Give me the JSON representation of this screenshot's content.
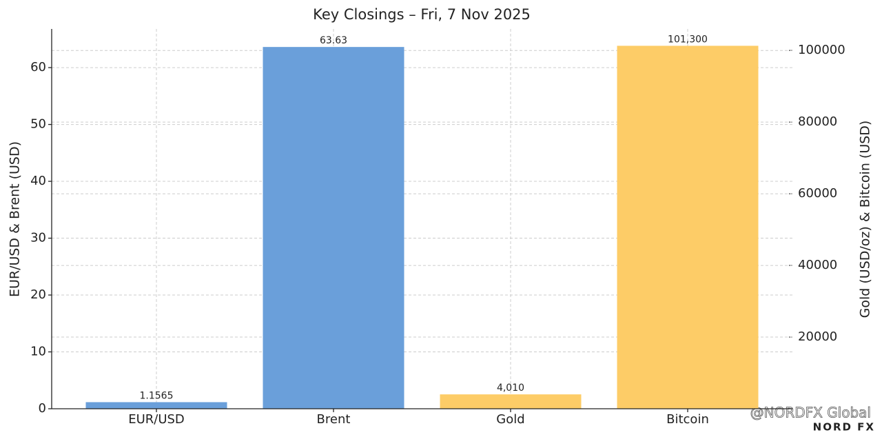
{
  "chart_data": {
    "type": "bar",
    "title": "Key Closings – Fri, 7 Nov 2025",
    "categories": [
      "EUR/USD",
      "Brent",
      "Gold",
      "Bitcoin"
    ],
    "ylabel": "EUR/USD & Brent (USD)",
    "y2label": "Gold (USD/oz) & Bitcoin (USD)",
    "ylim": [
      0,
      66.8
    ],
    "yticks": [
      0,
      10,
      20,
      30,
      40,
      50,
      60
    ],
    "y2lim": [
      0,
      106000
    ],
    "y2ticks": [
      20000,
      40000,
      60000,
      80000,
      100000
    ],
    "grid": true,
    "series": [
      {
        "color": "#6a9fda",
        "values": [
          1.1565,
          63.63,
          null,
          null
        ]
      },
      {
        "color": "#fdcc67",
        "axis": "y2",
        "values": [
          null,
          null,
          4010,
          101300
        ],
        "value_labels": [
          null,
          null,
          "4,010",
          "101,300"
        ]
      }
    ],
    "watermark": {
      "handle": "@NORDFX Global",
      "brand": "NORD FX"
    }
  }
}
